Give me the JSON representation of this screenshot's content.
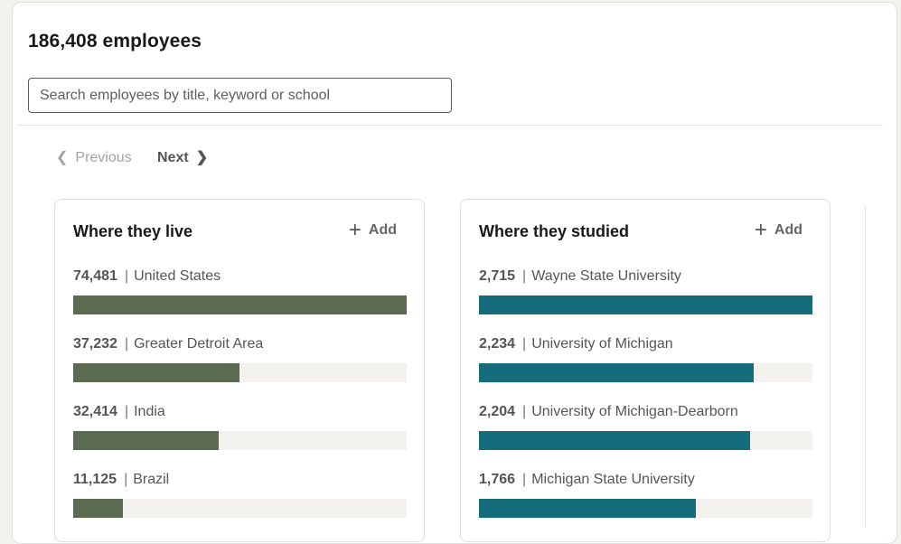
{
  "header": {
    "title": "186,408 employees",
    "search_placeholder": "Search employees by title, keyword or school"
  },
  "pagination": {
    "previous_label": "Previous",
    "next_label": "Next"
  },
  "panels": [
    {
      "title": "Where they live",
      "add_label": "Add",
      "bar_color": "#5b6b51",
      "stats": [
        {
          "count": "74,481",
          "label": "United States",
          "fraction": 1.0
        },
        {
          "count": "37,232",
          "label": "Greater Detroit Area",
          "fraction": 0.4999
        },
        {
          "count": "32,414",
          "label": "India",
          "fraction": 0.4352
        },
        {
          "count": "11,125",
          "label": "Brazil",
          "fraction": 0.1494
        }
      ]
    },
    {
      "title": "Where they studied",
      "add_label": "Add",
      "bar_color": "#156d7b",
      "stats": [
        {
          "count": "2,715",
          "label": "Wayne State University",
          "fraction": 1.0
        },
        {
          "count": "2,234",
          "label": "University of Michigan",
          "fraction": 0.8228
        },
        {
          "count": "2,204",
          "label": "University of Michigan-Dearborn",
          "fraction": 0.8118
        },
        {
          "count": "1,766",
          "label": "Michigan State University",
          "fraction": 0.6505
        }
      ]
    }
  ]
}
